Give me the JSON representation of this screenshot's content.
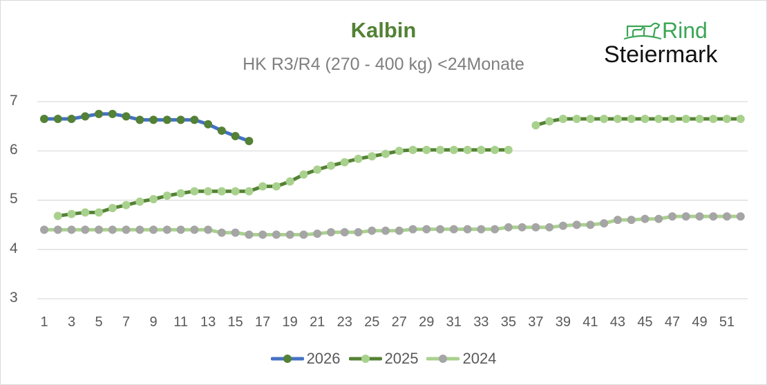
{
  "chart_data": {
    "type": "line",
    "title": "Kalbin",
    "subtitle": "HK R3/R4 (270 - 400 kg) <24Monate",
    "xlabel": "",
    "ylabel": "",
    "ylim": [
      3,
      7
    ],
    "yticks": [
      "7",
      "6",
      "5",
      "4",
      "3"
    ],
    "xticks": [
      "1",
      "3",
      "5",
      "7",
      "9",
      "11",
      "13",
      "15",
      "17",
      "19",
      "21",
      "23",
      "25",
      "27",
      "29",
      "31",
      "33",
      "35",
      "37",
      "39",
      "41",
      "43",
      "45",
      "47",
      "49",
      "51"
    ],
    "x": [
      1,
      2,
      3,
      4,
      5,
      6,
      7,
      8,
      9,
      10,
      11,
      12,
      13,
      14,
      15,
      16,
      17,
      18,
      19,
      20,
      21,
      22,
      23,
      24,
      25,
      26,
      27,
      28,
      29,
      30,
      31,
      32,
      33,
      34,
      35,
      36,
      37,
      38,
      39,
      40,
      41,
      42,
      43,
      44,
      45,
      46,
      47,
      48,
      49,
      50,
      51,
      52
    ],
    "grid": "horizontal",
    "legend_position": "bottom",
    "series": [
      {
        "name": "2026",
        "line_color": "#4472c4",
        "marker_color": "#538135",
        "values": [
          6.65,
          6.65,
          6.65,
          6.7,
          6.75,
          6.75,
          6.7,
          6.63,
          6.63,
          6.63,
          6.63,
          6.63,
          6.54,
          6.41,
          6.3,
          6.2,
          null,
          null,
          null,
          null,
          null,
          null,
          null,
          null,
          null,
          null,
          null,
          null,
          null,
          null,
          null,
          null,
          null,
          null,
          null,
          null,
          null,
          null,
          null,
          null,
          null,
          null,
          null,
          null,
          null,
          null,
          null,
          null,
          null,
          null,
          null,
          null
        ]
      },
      {
        "name": "2025",
        "line_color": "#548235",
        "marker_color": "#a9d18e",
        "values": [
          null,
          4.68,
          4.72,
          4.75,
          4.75,
          4.84,
          4.9,
          4.97,
          5.02,
          5.09,
          5.14,
          5.18,
          5.18,
          5.18,
          5.18,
          5.18,
          5.28,
          5.28,
          5.38,
          5.52,
          5.62,
          5.7,
          5.77,
          5.84,
          5.89,
          5.94,
          6.0,
          6.02,
          6.02,
          6.02,
          6.02,
          6.02,
          6.02,
          6.02,
          6.02,
          null,
          6.52,
          6.6,
          6.65,
          6.65,
          6.65,
          6.65,
          6.65,
          6.65,
          6.65,
          6.65,
          6.65,
          6.65,
          6.65,
          6.65,
          6.65,
          6.65
        ]
      },
      {
        "name": "2024",
        "line_color": "#a9d18e",
        "marker_color": "#a5a5a5",
        "values": [
          4.4,
          4.4,
          4.4,
          4.4,
          4.4,
          4.4,
          4.4,
          4.4,
          4.4,
          4.4,
          4.4,
          4.4,
          4.4,
          4.34,
          4.34,
          4.3,
          4.3,
          4.3,
          4.3,
          4.3,
          4.32,
          4.35,
          4.35,
          4.35,
          4.38,
          4.38,
          4.38,
          4.41,
          4.41,
          4.41,
          4.41,
          4.41,
          4.41,
          4.41,
          4.45,
          4.45,
          4.45,
          4.45,
          4.48,
          4.5,
          4.5,
          4.53,
          4.6,
          4.6,
          4.62,
          4.62,
          4.67,
          4.67,
          4.67,
          4.67,
          4.67,
          4.67
        ]
      }
    ]
  },
  "logo": {
    "word1": "Rind",
    "word2": "Steiermark",
    "icon": "cow-and-calf-icon",
    "color": "#3aa655"
  },
  "colors": {
    "title": "#538135",
    "subtitle": "#7f7f7f",
    "axis_text": "#595959",
    "gridline": "#d9d9d9"
  }
}
